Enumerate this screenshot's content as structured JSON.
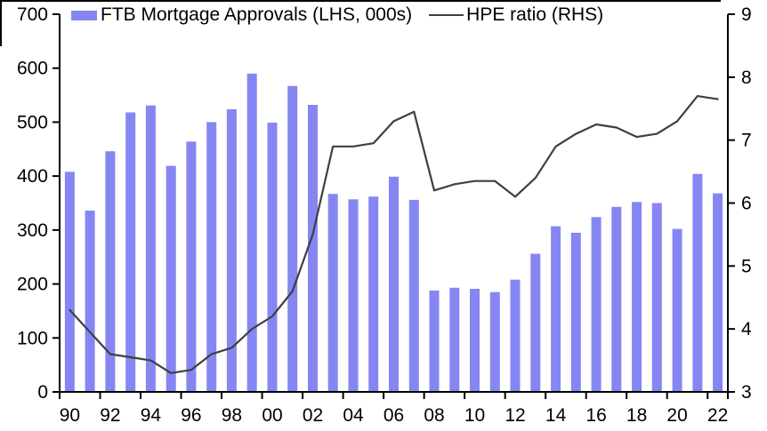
{
  "chart_data": {
    "type": "bar+line",
    "categories": [
      "90",
      "91",
      "92",
      "93",
      "94",
      "95",
      "96",
      "97",
      "98",
      "99",
      "00",
      "01",
      "02",
      "03",
      "04",
      "05",
      "06",
      "07",
      "08",
      "09",
      "10",
      "11",
      "12",
      "13",
      "14",
      "15",
      "16",
      "17",
      "18",
      "19",
      "20",
      "21",
      "22"
    ],
    "x_tick_labels": [
      "90",
      "92",
      "94",
      "96",
      "98",
      "00",
      "02",
      "04",
      "06",
      "08",
      "10",
      "12",
      "14",
      "16",
      "18",
      "20",
      "22"
    ],
    "series": [
      {
        "name": "FTB Mortgage Approvals (LHS, 000s)",
        "type": "bar",
        "axis": "left",
        "color": "#8686f3",
        "values": [
          408,
          336,
          446,
          518,
          531,
          419,
          464,
          500,
          524,
          590,
          499,
          567,
          532,
          367,
          357,
          362,
          399,
          356,
          188,
          193,
          191,
          185,
          208,
          256,
          307,
          295,
          324,
          343,
          352,
          350,
          302,
          404,
          368
        ]
      },
      {
        "name": "HPE ratio (RHS)",
        "type": "line",
        "axis": "right",
        "color": "#3f3f3f",
        "values": [
          4.3,
          3.95,
          3.6,
          3.55,
          3.5,
          3.3,
          3.35,
          3.6,
          3.7,
          4.0,
          4.2,
          4.6,
          5.5,
          6.9,
          6.9,
          6.95,
          7.3,
          7.45,
          6.2,
          6.3,
          6.35,
          6.35,
          6.1,
          6.4,
          6.9,
          7.1,
          7.25,
          7.2,
          7.05,
          7.1,
          7.3,
          7.7,
          7.65
        ]
      }
    ],
    "left_axis": {
      "min": 0,
      "max": 700,
      "tick_step": 100,
      "tick_labels": [
        "0",
        "100",
        "200",
        "300",
        "400",
        "500",
        "600",
        "700"
      ]
    },
    "right_axis": {
      "min": 3,
      "max": 9,
      "tick_step": 1,
      "tick_labels": [
        "3",
        "4",
        "5",
        "6",
        "7",
        "8",
        "9"
      ]
    },
    "grid": false,
    "legend_position": "top",
    "legend": {
      "bar_label": "FTB Mortgage Approvals (LHS, 000s)",
      "line_label": "HPE ratio (RHS)"
    },
    "colors": {
      "bar": "#8686f3",
      "line": "#3f3f3f",
      "axis": "#000000"
    }
  }
}
